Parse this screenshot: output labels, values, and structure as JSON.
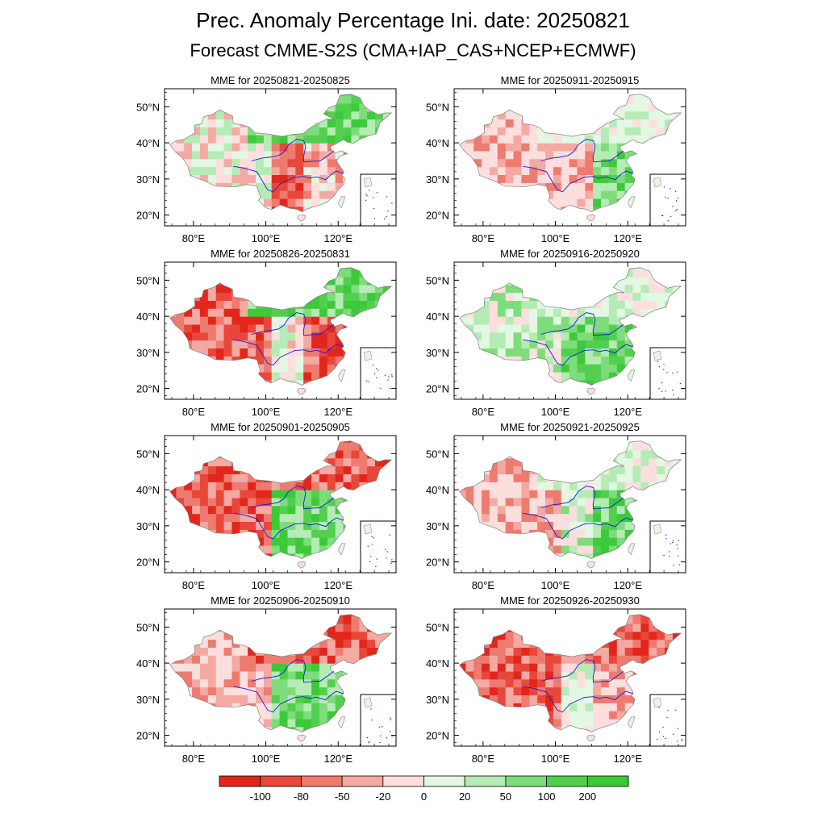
{
  "title": "Prec. Anomaly Percentage Ini. date: 20250821",
  "subtitle": "Forecast CMME-S2S (CMA+IAP_CAS+NCEP+ECMWF)",
  "lat_ticks": [
    "50°N",
    "40°N",
    "30°N",
    "20°N"
  ],
  "lon_ticks": [
    "80°E",
    "100°E",
    "120°E"
  ],
  "panels": [
    {
      "title": "MME for 20250821-20250825",
      "north": "green",
      "west": "mixed",
      "south": "red",
      "east": "red-mixed"
    },
    {
      "title": "MME for 20250826-20250831",
      "north": "green",
      "west": "red",
      "south": "mixed",
      "east": "red"
    },
    {
      "title": "MME for 20250901-20250905",
      "north": "red",
      "west": "red",
      "south": "green",
      "east": "green"
    },
    {
      "title": "MME for 20250906-20250910",
      "north": "red",
      "west": "red-light",
      "south": "green",
      "east": "green"
    },
    {
      "title": "MME for 20250911-20250915",
      "north": "light",
      "west": "red-light",
      "south": "red-light",
      "east": "green"
    },
    {
      "title": "MME for 20250916-20250920",
      "north": "light",
      "west": "green-light",
      "south": "green",
      "east": "green"
    },
    {
      "title": "MME for 20250921-20250925",
      "north": "light",
      "west": "red-light",
      "south": "green-light",
      "east": "green"
    },
    {
      "title": "MME for 20250926-20250930",
      "north": "red",
      "west": "red",
      "south": "light",
      "east": "red-light"
    }
  ],
  "colorbar": {
    "labels": [
      "-100",
      "-80",
      "-50",
      "-20",
      "0",
      "20",
      "50",
      "100",
      "200"
    ],
    "colors": [
      "#e3261c",
      "#e8473b",
      "#ee7b70",
      "#f4a9a3",
      "#fcdedc",
      "#e3f7e3",
      "#b5ebb4",
      "#7fdc7c",
      "#53cf4f",
      "#3cc93a"
    ]
  },
  "colors": {
    "border": "#000000",
    "province_line": "#808080",
    "river": "#1a1adc"
  }
}
